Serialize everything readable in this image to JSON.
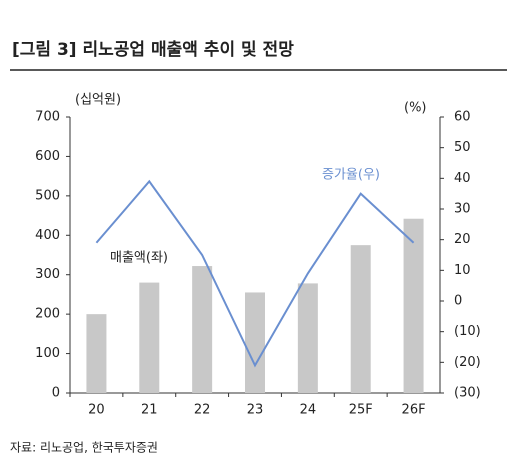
{
  "chart_data": {
    "type": "bar",
    "title": "[그림 3] 리노공업 매출액 추이 및 전망",
    "ylabel": "(십억원)",
    "y2label": "(%)",
    "source": "자료: 리노공업, 한국투자증권",
    "categories": [
      "20",
      "21",
      "22",
      "23",
      "24",
      "25F",
      "26F"
    ],
    "series": [
      {
        "name": "매출액(좌)",
        "type": "bar",
        "color": "#c8c8c8",
        "axis": "y",
        "values": [
          200,
          280,
          322,
          255,
          278,
          375,
          442
        ]
      },
      {
        "name": "증가율(우)",
        "type": "line",
        "color": "#6a8fd0",
        "axis": "y2",
        "values": [
          19,
          39,
          15,
          -21,
          9,
          35,
          19
        ]
      }
    ],
    "ylim": [
      0,
      700
    ],
    "yticks": [
      0,
      100,
      200,
      300,
      400,
      500,
      600,
      700
    ],
    "y2lim": [
      -30,
      60
    ],
    "y2ticks": [
      {
        "value": -30,
        "label": "(30)"
      },
      {
        "value": -20,
        "label": "(20)"
      },
      {
        "value": -10,
        "label": "(10)"
      },
      0,
      10,
      20,
      30,
      40,
      50,
      60
    ],
    "grid": false
  }
}
